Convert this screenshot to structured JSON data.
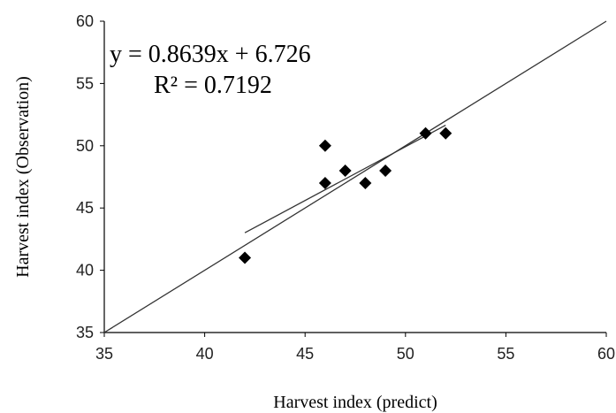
{
  "chart_data": {
    "type": "scatter",
    "title": "",
    "xlabel": "Harvest index (predict)",
    "ylabel": "Harvest index (Observation)",
    "xlim": [
      35,
      60
    ],
    "ylim": [
      35,
      60
    ],
    "xticks": [
      "35",
      "40",
      "45",
      "50",
      "55",
      "60"
    ],
    "yticks": [
      "35",
      "40",
      "45",
      "50",
      "55",
      "60"
    ],
    "grid": false,
    "legend": "none",
    "marker_color": "#000000",
    "line_color": "#333333",
    "points": [
      {
        "x": 42,
        "y": 41
      },
      {
        "x": 46,
        "y": 50
      },
      {
        "x": 46,
        "y": 47
      },
      {
        "x": 47,
        "y": 48
      },
      {
        "x": 48,
        "y": 47
      },
      {
        "x": 49,
        "y": 48
      },
      {
        "x": 51,
        "y": 51
      },
      {
        "x": 52,
        "y": 51
      }
    ],
    "trendline": {
      "slope": 0.8639,
      "intercept": 6.726,
      "x_range": [
        42,
        52
      ],
      "equation": "y = 0.8639x + 6.726",
      "r_squared": "R² = 0.7192"
    },
    "reference_line": {
      "from": [
        35,
        35
      ],
      "to": [
        60,
        60
      ]
    }
  }
}
